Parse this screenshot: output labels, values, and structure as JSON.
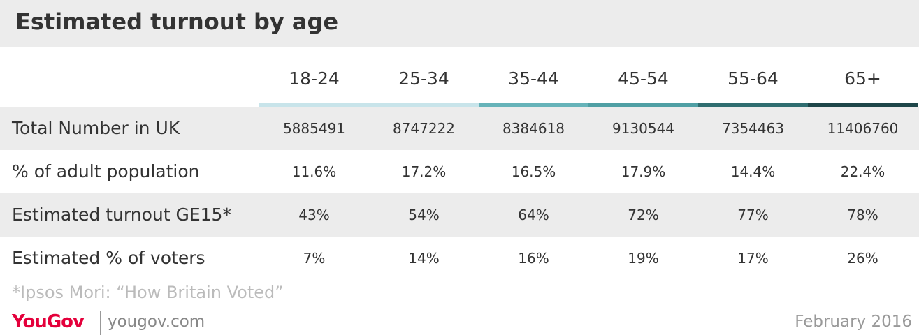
{
  "header": {
    "title": "Estimated turnout by age"
  },
  "table": {
    "columns": [
      "18-24",
      "25-34",
      "35-44",
      "45-54",
      "55-64",
      "65+"
    ],
    "column_colors": [
      "#c8e4ea",
      "#c8e4ea",
      "#66b3b9",
      "#4f9fa4",
      "#2f6d70",
      "#1e4649"
    ],
    "rows": [
      {
        "label": "Total Number in UK",
        "cells": [
          5885491,
          8747222,
          8384618,
          9130544,
          7354463,
          11406760
        ]
      },
      {
        "label": "% of adult population",
        "cells": [
          "11.6%",
          "17.2%",
          "16.5%",
          "17.9%",
          "14.4%",
          "22.4%"
        ]
      },
      {
        "label": "Estimated turnout GE15*",
        "cells": [
          "43%",
          "54%",
          "64%",
          "72%",
          "77%",
          "78%"
        ]
      },
      {
        "label": "Estimated % of voters",
        "cells": [
          "7%",
          "14%",
          "16%",
          "19%",
          "17%",
          "26%"
        ]
      }
    ]
  },
  "footnote": "*Ipsos Mori: “How Britain Voted”",
  "footer": {
    "brand": "YouGov",
    "site": "yougov.com",
    "date": "February 2016"
  }
}
